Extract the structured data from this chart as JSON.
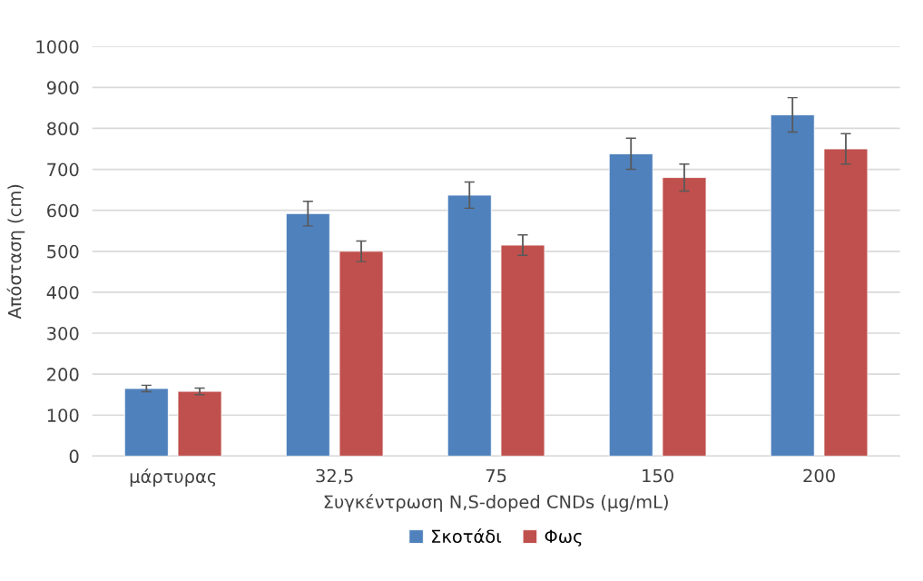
{
  "chart_data": {
    "type": "bar",
    "xlabel": "Συγκέντρωση N,S-doped CNDs (μg/mL)",
    "ylabel": "Απόσταση (cm)",
    "categories": [
      "μάρτυρας",
      "32,5",
      "75",
      "150",
      "200"
    ],
    "series": [
      {
        "name": "Σκοτάδι",
        "color": "#4f81bd",
        "values": [
          165,
          592,
          637,
          738,
          833
        ],
        "errors": [
          8,
          30,
          32,
          38,
          42
        ]
      },
      {
        "name": "Φως",
        "color": "#c0504d",
        "values": [
          158,
          500,
          515,
          680,
          750
        ],
        "errors": [
          8,
          25,
          25,
          33,
          37
        ]
      }
    ],
    "ylim": [
      0,
      1000
    ],
    "yticks": [
      0,
      100,
      200,
      300,
      400,
      500,
      600,
      700,
      800,
      900,
      1000
    ],
    "grid": "y",
    "legend": "bottom"
  }
}
